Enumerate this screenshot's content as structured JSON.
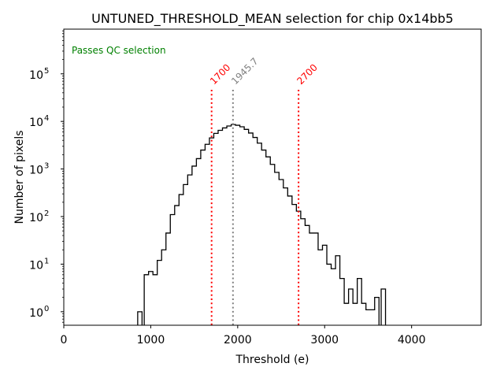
{
  "chart_data": {
    "type": "histogram",
    "title": "UNTUNED_THRESHOLD_MEAN selection for chip 0x14bb5",
    "xlabel": "Threshold (e)",
    "ylabel": "Number of pixels",
    "xlim": [
      0,
      4800
    ],
    "ylim": [
      0.52,
      870000
    ],
    "yscale": "log",
    "grid": false,
    "xticks": [
      0,
      1000,
      2000,
      3000,
      4000
    ],
    "xtick_labels": [
      "0",
      "1000",
      "2000",
      "3000",
      "4000"
    ],
    "yticks": [
      1,
      10,
      100,
      1000,
      10000,
      100000
    ],
    "ytick_labels": [
      {
        "base": "10",
        "exp": "0"
      },
      {
        "base": "10",
        "exp": "1"
      },
      {
        "base": "10",
        "exp": "2"
      },
      {
        "base": "10",
        "exp": "3"
      },
      {
        "base": "10",
        "exp": "4"
      },
      {
        "base": "10",
        "exp": "5"
      }
    ],
    "annotation": {
      "text": "Passes QC selection",
      "color": "#008000",
      "position": "top-left"
    },
    "vlines": [
      {
        "x": 1700,
        "label": "1700",
        "color": "#ff0000",
        "style": "dotted"
      },
      {
        "x": 1945.7,
        "label": "1945.7",
        "color": "#808080",
        "style": "dotted"
      },
      {
        "x": 2700,
        "label": "2700",
        "color": "#ff0000",
        "style": "dotted"
      }
    ],
    "histogram": {
      "color": "#000000",
      "bin_width": 50,
      "bins": [
        {
          "x0": 850,
          "count": 1
        },
        {
          "x0": 900,
          "count": 0
        },
        {
          "x0": 925,
          "count": 6
        },
        {
          "x0": 975,
          "count": 7
        },
        {
          "x0": 1025,
          "count": 6
        },
        {
          "x0": 1075,
          "count": 12
        },
        {
          "x0": 1125,
          "count": 20
        },
        {
          "x0": 1175,
          "count": 45
        },
        {
          "x0": 1225,
          "count": 110
        },
        {
          "x0": 1275,
          "count": 170
        },
        {
          "x0": 1325,
          "count": 290
        },
        {
          "x0": 1375,
          "count": 470
        },
        {
          "x0": 1425,
          "count": 750
        },
        {
          "x0": 1475,
          "count": 1150
        },
        {
          "x0": 1525,
          "count": 1650
        },
        {
          "x0": 1575,
          "count": 2500
        },
        {
          "x0": 1625,
          "count": 3300
        },
        {
          "x0": 1675,
          "count": 4500
        },
        {
          "x0": 1725,
          "count": 5600
        },
        {
          "x0": 1775,
          "count": 6500
        },
        {
          "x0": 1825,
          "count": 7300
        },
        {
          "x0": 1875,
          "count": 8000
        },
        {
          "x0": 1925,
          "count": 8600
        },
        {
          "x0": 1975,
          "count": 8300
        },
        {
          "x0": 2025,
          "count": 7700
        },
        {
          "x0": 2075,
          "count": 6800
        },
        {
          "x0": 2125,
          "count": 5700
        },
        {
          "x0": 2175,
          "count": 4600
        },
        {
          "x0": 2225,
          "count": 3500
        },
        {
          "x0": 2275,
          "count": 2500
        },
        {
          "x0": 2325,
          "count": 1800
        },
        {
          "x0": 2375,
          "count": 1250
        },
        {
          "x0": 2425,
          "count": 850
        },
        {
          "x0": 2475,
          "count": 600
        },
        {
          "x0": 2525,
          "count": 400
        },
        {
          "x0": 2575,
          "count": 270
        },
        {
          "x0": 2625,
          "count": 180
        },
        {
          "x0": 2675,
          "count": 130
        },
        {
          "x0": 2725,
          "count": 90
        },
        {
          "x0": 2775,
          "count": 65
        },
        {
          "x0": 2825,
          "count": 45
        },
        {
          "x0": 2875,
          "count": 45
        },
        {
          "x0": 2925,
          "count": 20
        },
        {
          "x0": 2975,
          "count": 25
        },
        {
          "x0": 3025,
          "count": 10
        },
        {
          "x0": 3075,
          "count": 8
        },
        {
          "x0": 3125,
          "count": 15
        },
        {
          "x0": 3175,
          "count": 5
        },
        {
          "x0": 3225,
          "count": 1.5
        },
        {
          "x0": 3275,
          "count": 3
        },
        {
          "x0": 3325,
          "count": 1.5
        },
        {
          "x0": 3375,
          "count": 5
        },
        {
          "x0": 3425,
          "count": 1.5
        },
        {
          "x0": 3475,
          "count": 1.1
        },
        {
          "x0": 3525,
          "count": 1.1
        },
        {
          "x0": 3575,
          "count": 2
        },
        {
          "x0": 3625,
          "count": 0
        },
        {
          "x0": 3650,
          "count": 3
        }
      ]
    }
  }
}
